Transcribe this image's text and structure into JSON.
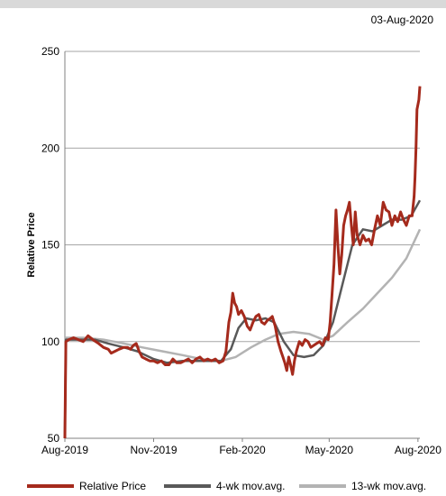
{
  "header": {
    "date": "03-Aug-2020"
  },
  "chart_data": {
    "type": "line",
    "title": "",
    "xlabel": "",
    "ylabel": "Relative Price",
    "ylim": [
      50,
      250
    ],
    "yticks": [
      50,
      100,
      150,
      200,
      250
    ],
    "xlim": [
      "2019-08-01",
      "2020-08-03"
    ],
    "xticks": [
      {
        "label": "Aug-2019",
        "date": "2019-08-01"
      },
      {
        "label": "Nov-2019",
        "date": "2019-11-01"
      },
      {
        "label": "Feb-2020",
        "date": "2020-02-01"
      },
      {
        "label": "May-2020",
        "date": "2020-05-01"
      },
      {
        "label": "Aug-2020",
        "date": "2020-08-01"
      }
    ],
    "grid": "horizontal",
    "legend_position": "bottom",
    "series": [
      {
        "name": "Relative Price",
        "color": "#a52a1c",
        "points": [
          [
            "2019-08-01",
            50
          ],
          [
            "2019-08-02",
            100
          ],
          [
            "2019-08-05",
            101
          ],
          [
            "2019-08-10",
            102
          ],
          [
            "2019-08-15",
            101
          ],
          [
            "2019-08-20",
            100
          ],
          [
            "2019-08-25",
            103
          ],
          [
            "2019-08-30",
            101
          ],
          [
            "2019-09-05",
            99
          ],
          [
            "2019-09-10",
            97
          ],
          [
            "2019-09-15",
            96
          ],
          [
            "2019-09-18",
            94
          ],
          [
            "2019-09-22",
            95
          ],
          [
            "2019-09-26",
            96
          ],
          [
            "2019-10-01",
            97
          ],
          [
            "2019-10-05",
            97
          ],
          [
            "2019-10-08",
            96
          ],
          [
            "2019-10-11",
            98
          ],
          [
            "2019-10-14",
            99
          ],
          [
            "2019-10-17",
            95
          ],
          [
            "2019-10-20",
            92
          ],
          [
            "2019-10-24",
            91
          ],
          [
            "2019-10-28",
            90
          ],
          [
            "2019-11-01",
            90
          ],
          [
            "2019-11-05",
            89
          ],
          [
            "2019-11-09",
            90
          ],
          [
            "2019-11-13",
            88
          ],
          [
            "2019-11-17",
            88
          ],
          [
            "2019-11-21",
            91
          ],
          [
            "2019-11-25",
            89
          ],
          [
            "2019-11-29",
            89
          ],
          [
            "2019-12-03",
            90
          ],
          [
            "2019-12-07",
            91
          ],
          [
            "2019-12-11",
            89
          ],
          [
            "2019-12-15",
            91
          ],
          [
            "2019-12-19",
            92
          ],
          [
            "2019-12-23",
            90
          ],
          [
            "2019-12-27",
            91
          ],
          [
            "2019-12-31",
            90
          ],
          [
            "2020-01-04",
            91
          ],
          [
            "2020-01-08",
            89
          ],
          [
            "2020-01-12",
            90
          ],
          [
            "2020-01-15",
            95
          ],
          [
            "2020-01-18",
            110
          ],
          [
            "2020-01-20",
            115
          ],
          [
            "2020-01-22",
            125
          ],
          [
            "2020-01-24",
            120
          ],
          [
            "2020-01-26",
            118
          ],
          [
            "2020-01-28",
            114
          ],
          [
            "2020-01-31",
            116
          ],
          [
            "2020-02-03",
            113
          ],
          [
            "2020-02-06",
            108
          ],
          [
            "2020-02-09",
            106
          ],
          [
            "2020-02-12",
            110
          ],
          [
            "2020-02-15",
            113
          ],
          [
            "2020-02-18",
            114
          ],
          [
            "2020-02-21",
            110
          ],
          [
            "2020-02-24",
            109
          ],
          [
            "2020-02-27",
            111
          ],
          [
            "2020-03-01",
            112
          ],
          [
            "2020-03-03",
            113
          ],
          [
            "2020-03-06",
            108
          ],
          [
            "2020-03-09",
            100
          ],
          [
            "2020-03-12",
            95
          ],
          [
            "2020-03-14",
            92
          ],
          [
            "2020-03-16",
            89
          ],
          [
            "2020-03-18",
            85
          ],
          [
            "2020-03-20",
            92
          ],
          [
            "2020-03-22",
            88
          ],
          [
            "2020-03-24",
            83
          ],
          [
            "2020-03-26",
            90
          ],
          [
            "2020-03-28",
            95
          ],
          [
            "2020-03-31",
            100
          ],
          [
            "2020-04-03",
            98
          ],
          [
            "2020-04-06",
            101
          ],
          [
            "2020-04-09",
            100
          ],
          [
            "2020-04-12",
            97
          ],
          [
            "2020-04-15",
            98
          ],
          [
            "2020-04-18",
            99
          ],
          [
            "2020-04-21",
            100
          ],
          [
            "2020-04-24",
            98
          ],
          [
            "2020-04-27",
            102
          ],
          [
            "2020-04-30",
            101
          ],
          [
            "2020-05-02",
            110
          ],
          [
            "2020-05-04",
            125
          ],
          [
            "2020-05-06",
            140
          ],
          [
            "2020-05-08",
            168
          ],
          [
            "2020-05-10",
            150
          ],
          [
            "2020-05-12",
            135
          ],
          [
            "2020-05-14",
            145
          ],
          [
            "2020-05-16",
            160
          ],
          [
            "2020-05-18",
            165
          ],
          [
            "2020-05-20",
            168
          ],
          [
            "2020-05-22",
            172
          ],
          [
            "2020-05-24",
            160
          ],
          [
            "2020-05-26",
            150
          ],
          [
            "2020-05-28",
            167
          ],
          [
            "2020-05-30",
            155
          ],
          [
            "2020-06-02",
            150
          ],
          [
            "2020-06-05",
            155
          ],
          [
            "2020-06-08",
            152
          ],
          [
            "2020-06-11",
            153
          ],
          [
            "2020-06-14",
            150
          ],
          [
            "2020-06-17",
            158
          ],
          [
            "2020-06-20",
            165
          ],
          [
            "2020-06-23",
            160
          ],
          [
            "2020-06-26",
            172
          ],
          [
            "2020-06-29",
            168
          ],
          [
            "2020-07-02",
            167
          ],
          [
            "2020-07-05",
            160
          ],
          [
            "2020-07-08",
            165
          ],
          [
            "2020-07-11",
            162
          ],
          [
            "2020-07-14",
            167
          ],
          [
            "2020-07-17",
            163
          ],
          [
            "2020-07-20",
            160
          ],
          [
            "2020-07-23",
            165
          ],
          [
            "2020-07-26",
            165
          ],
          [
            "2020-07-28",
            175
          ],
          [
            "2020-07-29",
            185
          ],
          [
            "2020-07-30",
            200
          ],
          [
            "2020-07-31",
            220
          ],
          [
            "2020-08-02",
            225
          ],
          [
            "2020-08-03",
            232
          ]
        ]
      },
      {
        "name": "4-wk mov.avg.",
        "color": "#595959",
        "points": [
          [
            "2019-08-01",
            50
          ],
          [
            "2019-08-02",
            101
          ],
          [
            "2019-08-15",
            101
          ],
          [
            "2019-09-01",
            101
          ],
          [
            "2019-09-15",
            99
          ],
          [
            "2019-10-01",
            97
          ],
          [
            "2019-10-15",
            95
          ],
          [
            "2019-11-01",
            91
          ],
          [
            "2019-11-15",
            89
          ],
          [
            "2019-12-01",
            90
          ],
          [
            "2019-12-15",
            90
          ],
          [
            "2020-01-01",
            90
          ],
          [
            "2020-01-10",
            90
          ],
          [
            "2020-01-20",
            96
          ],
          [
            "2020-01-28",
            107
          ],
          [
            "2020-02-05",
            112
          ],
          [
            "2020-02-15",
            111
          ],
          [
            "2020-02-25",
            112
          ],
          [
            "2020-03-05",
            110
          ],
          [
            "2020-03-15",
            100
          ],
          [
            "2020-03-25",
            93
          ],
          [
            "2020-04-05",
            92
          ],
          [
            "2020-04-15",
            93
          ],
          [
            "2020-04-25",
            98
          ],
          [
            "2020-05-05",
            110
          ],
          [
            "2020-05-15",
            130
          ],
          [
            "2020-05-25",
            150
          ],
          [
            "2020-06-05",
            158
          ],
          [
            "2020-06-15",
            157
          ],
          [
            "2020-06-25",
            160
          ],
          [
            "2020-07-05",
            163
          ],
          [
            "2020-07-15",
            163
          ],
          [
            "2020-07-25",
            165
          ],
          [
            "2020-08-03",
            173
          ]
        ]
      },
      {
        "name": "13-wk mov.avg.",
        "color": "#b3b3b3",
        "points": [
          [
            "2019-08-01",
            50
          ],
          [
            "2019-08-02",
            102
          ],
          [
            "2019-08-20",
            102
          ],
          [
            "2019-09-10",
            101
          ],
          [
            "2019-10-01",
            99
          ],
          [
            "2019-10-20",
            97
          ],
          [
            "2019-11-10",
            95
          ],
          [
            "2019-12-01",
            93
          ],
          [
            "2019-12-20",
            91
          ],
          [
            "2020-01-10",
            90
          ],
          [
            "2020-01-25",
            92
          ],
          [
            "2020-02-10",
            97
          ],
          [
            "2020-02-25",
            101
          ],
          [
            "2020-03-10",
            104
          ],
          [
            "2020-03-25",
            105
          ],
          [
            "2020-04-10",
            104
          ],
          [
            "2020-04-25",
            101
          ],
          [
            "2020-05-05",
            103
          ],
          [
            "2020-05-20",
            110
          ],
          [
            "2020-06-05",
            117
          ],
          [
            "2020-06-20",
            125
          ],
          [
            "2020-07-05",
            133
          ],
          [
            "2020-07-20",
            143
          ],
          [
            "2020-08-03",
            158
          ]
        ]
      }
    ]
  },
  "legend": {
    "items": [
      {
        "label": "Relative Price",
        "color": "#a52a1c"
      },
      {
        "label": "4-wk mov.avg.",
        "color": "#595959"
      },
      {
        "label": "13-wk mov.avg.",
        "color": "#b3b3b3"
      }
    ]
  }
}
